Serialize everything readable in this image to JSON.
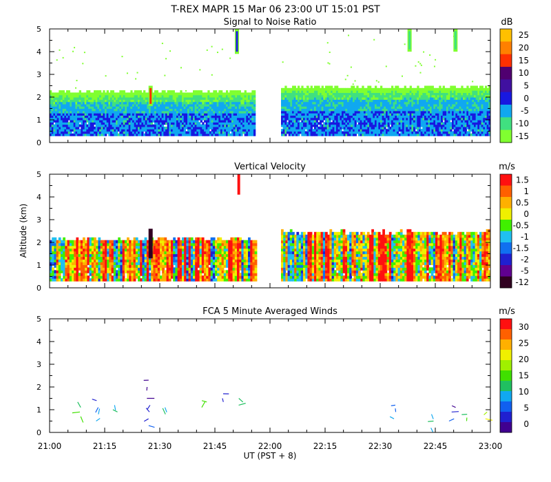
{
  "header": {
    "title": "T-REX   MAPR 15 Mar 06   23:00 UT   15:01   PST"
  },
  "x_axis": {
    "label": "UT  (PST + 8)",
    "ticks": [
      "21:00",
      "21:15",
      "21:30",
      "21:45",
      "22:00",
      "22:15",
      "22:30",
      "22:45",
      "23:00"
    ],
    "range_minutes": [
      0,
      120
    ]
  },
  "y_axis": {
    "label": "Altitude (km)",
    "ticks": [
      "0",
      "1",
      "2",
      "3",
      "4",
      "5"
    ],
    "range": [
      0,
      5
    ]
  },
  "panels": [
    {
      "title": "Signal to Noise Ratio",
      "unit": "dB",
      "colorbar_labels": [
        "25",
        "20",
        "15",
        "10",
        "5",
        "0",
        "-5",
        "-10",
        "-15"
      ],
      "colors": [
        "#ffc000",
        "#ff8000",
        "#ff3000",
        "#500070",
        "#4010a0",
        "#1818e0",
        "#10a8f0",
        "#40e080",
        "#80ff30"
      ]
    },
    {
      "title": "Vertical Velocity",
      "unit": "m/s",
      "colorbar_labels": [
        "1.5",
        "1",
        "0.5",
        "0",
        "-0.5",
        "-1",
        "-1.5",
        "-2",
        "-5",
        "-12"
      ],
      "colors": [
        "#ff1010",
        "#ff6000",
        "#ffb000",
        "#f0f000",
        "#40f000",
        "#20c0f0",
        "#1070f0",
        "#2020d0",
        "#600090",
        "#300020"
      ]
    },
    {
      "title": "FCA 5 Minute Averaged Winds",
      "unit": "m/s",
      "colorbar_labels": [
        "30",
        "25",
        "20",
        "15",
        "10",
        "5",
        "0"
      ],
      "colors": [
        "#ff1010",
        "#ff6000",
        "#ffb000",
        "#f0f000",
        "#a0f000",
        "#40e000",
        "#20c060",
        "#10a8f0",
        "#1060f0",
        "#2020d0",
        "#400090"
      ]
    }
  ],
  "chart_data": [
    {
      "type": "heatmap",
      "title": "Signal to Noise Ratio",
      "unit": "dB",
      "xlabel": "UT  (PST + 8)",
      "ylabel": "Altitude (km)",
      "xlim_minutes": [
        0,
        120
      ],
      "ylim": [
        0,
        5
      ],
      "blocks": [
        {
          "t0": 0,
          "t1": 56,
          "z0": 0.3,
          "z1": 2.2
        },
        {
          "t0": 63,
          "t1": 120,
          "z0": 0.3,
          "z1": 2.4
        }
      ],
      "layers": [
        {
          "z0": 0.3,
          "z1": 2.2,
          "dB": -15
        },
        {
          "z0": 0.3,
          "z1": 2.0,
          "dB": -10
        },
        {
          "z0": 0.3,
          "z1": 1.7,
          "dB": -5
        },
        {
          "z0": 0.3,
          "z1": 1.4,
          "dB": 0
        }
      ],
      "features": [
        {
          "t": 27.5,
          "z0": 1.6,
          "z1": 2.5,
          "dB": 15
        },
        {
          "t": 51,
          "z0": 3.9,
          "z1": 5.0,
          "dB": 0
        },
        {
          "t": 98,
          "z0": 4.0,
          "z1": 5.0,
          "dB": -10
        },
        {
          "t": 110.5,
          "z0": 4.0,
          "z1": 5.0,
          "dB": -10
        }
      ]
    },
    {
      "type": "heatmap",
      "title": "Vertical Velocity",
      "unit": "m/s",
      "xlabel": "UT  (PST + 8)",
      "ylabel": "Altitude (km)",
      "xlim_minutes": [
        0,
        120
      ],
      "ylim": [
        0,
        5
      ],
      "blocks": [
        {
          "t0": 0,
          "t1": 56,
          "z0": 0.3,
          "z1": 2.1
        },
        {
          "t0": 63,
          "t1": 120,
          "z0": 0.3,
          "z1": 2.4
        }
      ],
      "features": [
        {
          "t": 27.5,
          "z0": 1.3,
          "z1": 2.6,
          "w": -12
        },
        {
          "t": 51.5,
          "z0": 4.1,
          "z1": 5.0,
          "w": 1.5
        }
      ]
    },
    {
      "type": "scatter",
      "title": "FCA 5 Minute Averaged Winds",
      "unit": "m/s",
      "xlabel": "UT  (PST + 8)",
      "ylabel": "Altitude (km)",
      "xlim_minutes": [
        0,
        120
      ],
      "ylim": [
        0,
        5
      ],
      "profiles": [
        {
          "t": 8,
          "heights": [
            1.1,
            0.9,
            0.7
          ],
          "speeds": [
            12,
            14,
            16
          ]
        },
        {
          "t": 13,
          "heights": [
            1.4,
            1.1,
            0.8,
            0.5
          ],
          "speeds": [
            4,
            6,
            8,
            10
          ]
        },
        {
          "t": 18,
          "heights": [
            1.2,
            0.9
          ],
          "speeds": [
            9,
            11
          ]
        },
        {
          "t": 27,
          "heights": [
            2.3,
            2.0,
            1.5,
            1.2,
            0.9,
            0.6,
            0.3
          ],
          "speeds": [
            1,
            1,
            0,
            3,
            4,
            4,
            5
          ]
        },
        {
          "t": 31,
          "heights": [
            1.1,
            0.8
          ],
          "speeds": [
            10,
            11
          ]
        },
        {
          "t": 41,
          "heights": [
            1.4,
            1.1
          ],
          "speeds": [
            14,
            15
          ]
        },
        {
          "t": 47,
          "heights": [
            1.7,
            1.5
          ],
          "speeds": [
            3,
            4
          ]
        },
        {
          "t": 52,
          "heights": [
            1.5,
            1.2
          ],
          "speeds": [
            13,
            12
          ]
        },
        {
          "t": 94,
          "heights": [
            1.2,
            0.9,
            0.6
          ],
          "speeds": [
            5,
            6,
            8
          ]
        },
        {
          "t": 104,
          "heights": [
            0.8,
            0.5,
            0.2
          ],
          "speeds": [
            10,
            11,
            10
          ]
        },
        {
          "t": 110,
          "heights": [
            1.1,
            0.9,
            0.6
          ],
          "speeds": [
            1,
            3,
            6
          ]
        },
        {
          "t": 114,
          "heights": [
            0.8,
            0.5
          ],
          "speeds": [
            12,
            14
          ]
        },
        {
          "t": 119,
          "heights": [
            0.9,
            0.6
          ],
          "speeds": [
            18,
            20
          ]
        }
      ]
    }
  ]
}
